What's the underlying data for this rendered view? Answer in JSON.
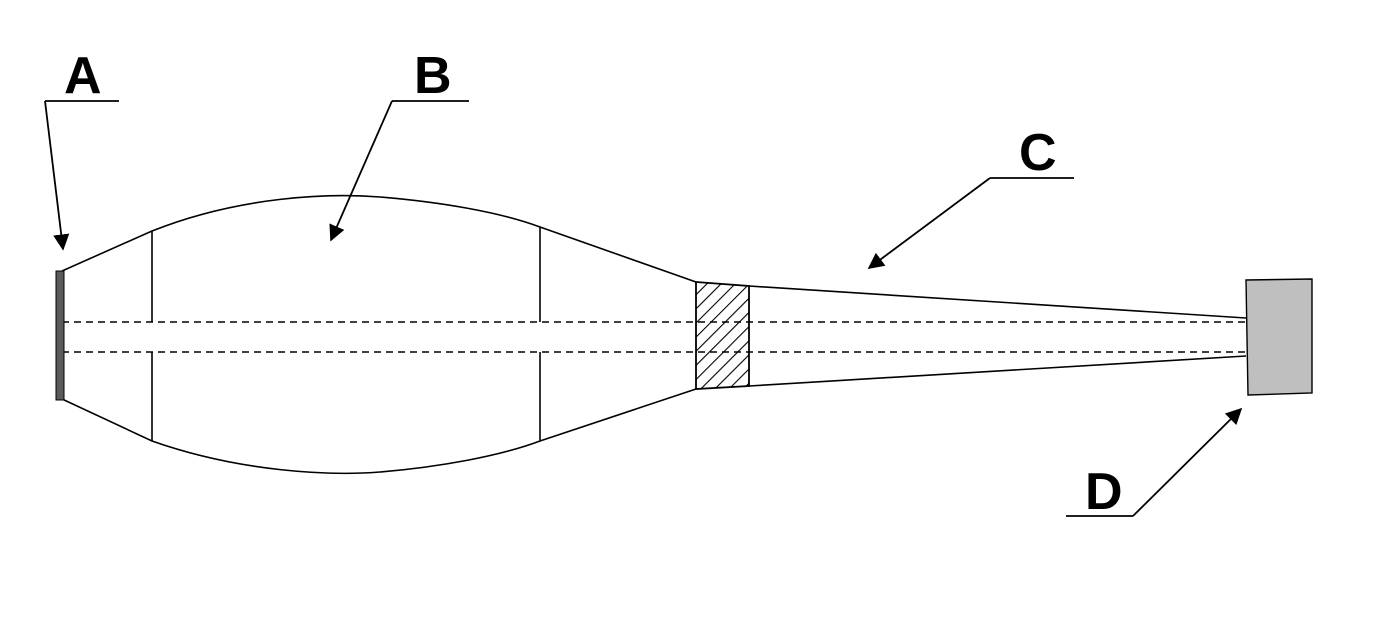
{
  "labels": {
    "a": "A",
    "b": "B",
    "c": "C",
    "d": "D"
  },
  "colors": {
    "stroke": "#000000",
    "part_a_fill": "#5a5a5a",
    "part_d_fill": "#bfbfbf",
    "background": "#ffffff"
  }
}
